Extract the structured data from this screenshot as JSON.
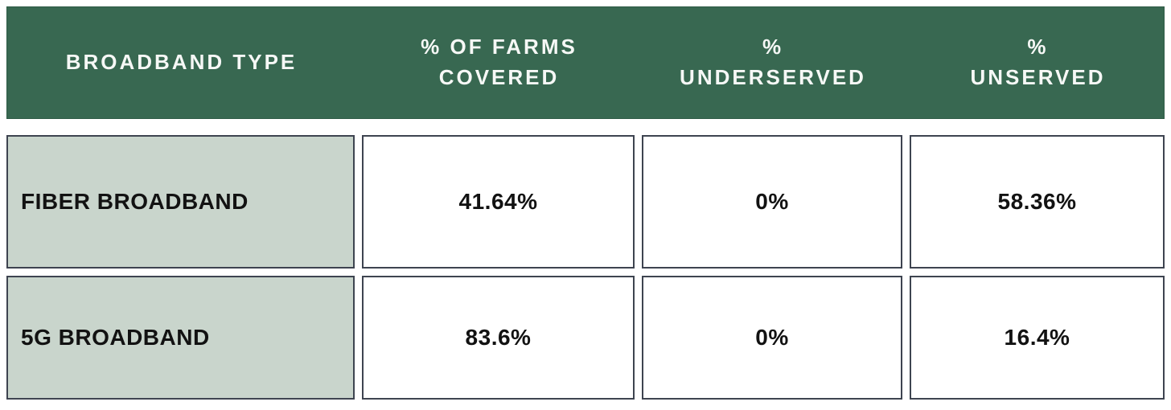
{
  "table": {
    "header": {
      "columns": [
        {
          "label": "BROADBAND TYPE"
        },
        {
          "label": "% OF FARMS\nCOVERED"
        },
        {
          "label": "%\nUNDERSERVED"
        },
        {
          "label": "%\nUNSERVED"
        }
      ]
    },
    "rows": [
      {
        "type": "FIBER BROADBAND",
        "covered": "41.64%",
        "underserved": "0%",
        "unserved": "58.36%"
      },
      {
        "type": "5G BROADBAND",
        "covered": "83.6%",
        "underserved": "0%",
        "unserved": "16.4%"
      }
    ],
    "colors": {
      "header_bg": "#386851",
      "header_text": "#f6f8f6",
      "label_cell_bg": "#c9d5cc",
      "cell_border": "#3e4450",
      "cell_text": "#121212",
      "background": "#ffffff"
    }
  },
  "chart_data": {
    "type": "table",
    "title": "Broadband farm coverage by type",
    "columns": [
      "BROADBAND TYPE",
      "% OF FARMS COVERED",
      "% UNDERSERVED",
      "% UNSERVED"
    ],
    "rows": [
      [
        "FIBER BROADBAND",
        "41.64%",
        "0%",
        "58.36%"
      ],
      [
        "5G BROADBAND",
        "83.6%",
        "0%",
        "16.4%"
      ]
    ],
    "series": [
      {
        "name": "% of farms covered",
        "values": [
          41.64,
          83.6
        ]
      },
      {
        "name": "% underserved",
        "values": [
          0,
          0
        ]
      },
      {
        "name": "% unserved",
        "values": [
          58.36,
          16.4
        ]
      }
    ],
    "categories": [
      "FIBER BROADBAND",
      "5G BROADBAND"
    ]
  }
}
